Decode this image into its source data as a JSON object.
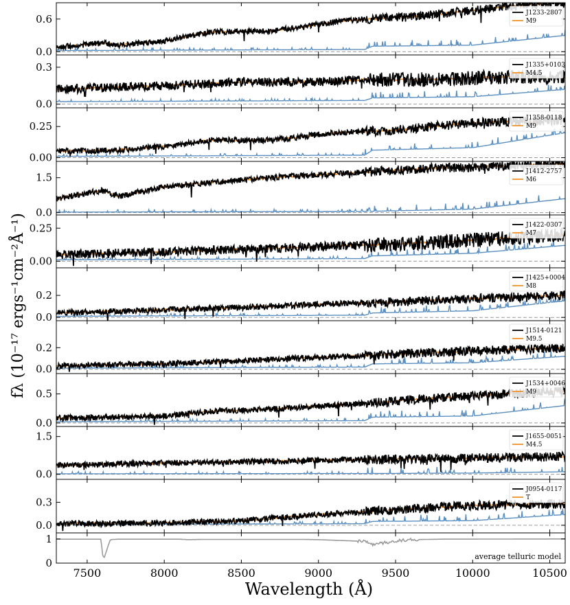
{
  "chart_data": {
    "type": "line",
    "title": "",
    "xlabel": "Wavelength (Å)",
    "ylabel": "fλ (10⁻¹⁷ ergs⁻¹cm⁻²Å⁻¹)",
    "xlim": [
      7300,
      10600
    ],
    "xticks": [
      7500,
      8000,
      8500,
      9000,
      9500,
      10000,
      10500
    ],
    "xtick_labels": [
      "7500",
      "8000",
      "8500",
      "9000",
      "9500",
      "10000",
      "10500"
    ],
    "grid": false,
    "legend_position": "top-right",
    "series_colors": {
      "observed": "#000000",
      "template": "#f0922b",
      "noise": "#5b8fc0",
      "telluric": "#9a9a9a"
    },
    "panels": [
      {
        "legend": [
          "J1233-2807",
          "M9"
        ],
        "ylim": [
          -0.06,
          0.9
        ],
        "yticks": [
          0.0,
          0.6
        ],
        "ytick_labels": [
          "0.0",
          "0.6"
        ],
        "continuum": [
          [
            7300,
            0.08
          ],
          [
            7600,
            0.16
          ],
          [
            7700,
            0.12
          ],
          [
            8000,
            0.2
          ],
          [
            8300,
            0.36
          ],
          [
            8700,
            0.38
          ],
          [
            9200,
            0.58
          ],
          [
            9600,
            0.64
          ],
          [
            10000,
            0.76
          ],
          [
            10300,
            0.85
          ],
          [
            10600,
            0.9
          ]
        ],
        "noise": [
          [
            7300,
            0.02
          ],
          [
            9300,
            0.04
          ],
          [
            9350,
            0.1
          ],
          [
            10000,
            0.12
          ],
          [
            10600,
            0.3
          ]
        ]
      },
      {
        "legend": [
          "J1335+0103",
          "M4.5"
        ],
        "ylim": [
          -0.03,
          0.4
        ],
        "yticks": [
          0.0,
          0.3
        ],
        "ytick_labels": [
          "0.0",
          "0.3"
        ],
        "continuum": [
          [
            7300,
            0.12
          ],
          [
            8000,
            0.15
          ],
          [
            8500,
            0.18
          ],
          [
            9000,
            0.18
          ],
          [
            9300,
            0.2
          ],
          [
            9700,
            0.2
          ],
          [
            10200,
            0.22
          ],
          [
            10600,
            0.22
          ]
        ],
        "noise": [
          [
            7300,
            0.02
          ],
          [
            9300,
            0.03
          ],
          [
            9350,
            0.05
          ],
          [
            10000,
            0.06
          ],
          [
            10600,
            0.12
          ]
        ]
      },
      {
        "legend": [
          "J1358-0118",
          "M9"
        ],
        "ylim": [
          -0.03,
          0.4
        ],
        "yticks": [
          0.0,
          0.25
        ],
        "ytick_labels": [
          "0.00",
          "0.25"
        ],
        "continuum": [
          [
            7300,
            0.05
          ],
          [
            7700,
            0.06
          ],
          [
            8000,
            0.09
          ],
          [
            8300,
            0.14
          ],
          [
            8700,
            0.14
          ],
          [
            9100,
            0.2
          ],
          [
            9500,
            0.22
          ],
          [
            10000,
            0.28
          ],
          [
            10600,
            0.3
          ]
        ],
        "noise": [
          [
            7300,
            0.01
          ],
          [
            9300,
            0.02
          ],
          [
            9350,
            0.06
          ],
          [
            10000,
            0.08
          ],
          [
            10600,
            0.2
          ]
        ]
      },
      {
        "legend": [
          "J1412-2757",
          "M6"
        ],
        "ylim": [
          -0.1,
          2.2
        ],
        "yticks": [
          0.0,
          1.5
        ],
        "ytick_labels": [
          "0.0",
          "1.5"
        ],
        "continuum": [
          [
            7300,
            0.6
          ],
          [
            7600,
            0.95
          ],
          [
            7700,
            0.7
          ],
          [
            8000,
            1.1
          ],
          [
            8300,
            1.3
          ],
          [
            8700,
            1.5
          ],
          [
            9200,
            1.7
          ],
          [
            9700,
            1.9
          ],
          [
            10200,
            2.0
          ],
          [
            10600,
            2.1
          ]
        ],
        "noise": [
          [
            7300,
            0.02
          ],
          [
            9300,
            0.05
          ],
          [
            10000,
            0.15
          ],
          [
            10600,
            0.6
          ]
        ]
      },
      {
        "legend": [
          "J1422-0307",
          "M7"
        ],
        "ylim": [
          -0.05,
          0.35
        ],
        "yticks": [
          0.0,
          0.25
        ],
        "ytick_labels": [
          "0.00",
          "0.25"
        ],
        "continuum": [
          [
            7300,
            0.05
          ],
          [
            8000,
            0.07
          ],
          [
            8500,
            0.09
          ],
          [
            9000,
            0.11
          ],
          [
            9500,
            0.13
          ],
          [
            10000,
            0.16
          ],
          [
            10600,
            0.2
          ]
        ],
        "noise": [
          [
            7300,
            0.01
          ],
          [
            9300,
            0.02
          ],
          [
            9350,
            0.04
          ],
          [
            10000,
            0.06
          ],
          [
            10600,
            0.12
          ]
        ]
      },
      {
        "legend": [
          "J1425+0004",
          "M8"
        ],
        "ylim": [
          -0.03,
          0.45
        ],
        "yticks": [
          0.0,
          0.2
        ],
        "ytick_labels": [
          "0.0",
          "0.2"
        ],
        "continuum": [
          [
            7300,
            0.04
          ],
          [
            8000,
            0.07
          ],
          [
            8500,
            0.09
          ],
          [
            9000,
            0.12
          ],
          [
            9500,
            0.14
          ],
          [
            10000,
            0.17
          ],
          [
            10600,
            0.2
          ]
        ],
        "noise": [
          [
            7300,
            0.01
          ],
          [
            9300,
            0.02
          ],
          [
            9350,
            0.04
          ],
          [
            10000,
            0.06
          ],
          [
            10600,
            0.15
          ]
        ]
      },
      {
        "legend": [
          "J1514-0121",
          "M9.5"
        ],
        "ylim": [
          -0.04,
          0.45
        ],
        "yticks": [
          0.0,
          0.2
        ],
        "ytick_labels": [
          "0.0",
          "0.2"
        ],
        "continuum": [
          [
            7300,
            0.03
          ],
          [
            8000,
            0.05
          ],
          [
            8500,
            0.08
          ],
          [
            9000,
            0.11
          ],
          [
            9500,
            0.14
          ],
          [
            10000,
            0.17
          ],
          [
            10600,
            0.2
          ]
        ],
        "noise": [
          [
            7300,
            0.01
          ],
          [
            9300,
            0.02
          ],
          [
            9350,
            0.05
          ],
          [
            10000,
            0.06
          ],
          [
            10600,
            0.12
          ]
        ]
      },
      {
        "legend": [
          "J1534+0046",
          "M9"
        ],
        "ylim": [
          -0.06,
          0.85
        ],
        "yticks": [
          0.0,
          0.5
        ],
        "ytick_labels": [
          "0.0",
          "0.5"
        ],
        "continuum": [
          [
            7300,
            0.08
          ],
          [
            8000,
            0.12
          ],
          [
            8300,
            0.2
          ],
          [
            8700,
            0.24
          ],
          [
            9200,
            0.32
          ],
          [
            9700,
            0.42
          ],
          [
            10200,
            0.5
          ],
          [
            10600,
            0.55
          ]
        ],
        "noise": [
          [
            7300,
            0.02
          ],
          [
            9300,
            0.04
          ],
          [
            9350,
            0.1
          ],
          [
            10000,
            0.12
          ],
          [
            10600,
            0.3
          ]
        ]
      },
      {
        "legend": [
          "J1655-0051",
          "M4.5"
        ],
        "ylim": [
          -0.2,
          1.9
        ],
        "yticks": [
          0.0,
          1.5
        ],
        "ytick_labels": [
          "0.0",
          "1.5"
        ],
        "continuum": [
          [
            7300,
            0.35
          ],
          [
            8000,
            0.45
          ],
          [
            8500,
            0.5
          ],
          [
            9000,
            0.55
          ],
          [
            9500,
            0.6
          ],
          [
            10000,
            0.65
          ],
          [
            10600,
            0.7
          ]
        ],
        "noise": [
          [
            7300,
            0.02
          ],
          [
            9300,
            0.03
          ],
          [
            10000,
            0.05
          ],
          [
            10600,
            0.1
          ]
        ]
      },
      {
        "legend": [
          "J0954-0117",
          "T"
        ],
        "ylim": [
          -0.1,
          0.6
        ],
        "yticks": [
          0.0,
          0.3
        ],
        "ytick_labels": [
          "0.0",
          "0.3"
        ],
        "continuum": [
          [
            7300,
            0.02
          ],
          [
            8000,
            0.03
          ],
          [
            8500,
            0.06
          ],
          [
            9000,
            0.14
          ],
          [
            9500,
            0.2
          ],
          [
            10000,
            0.26
          ],
          [
            10600,
            0.28
          ]
        ],
        "noise": [
          [
            7300,
            0.01
          ],
          [
            9300,
            0.02
          ],
          [
            9350,
            0.05
          ],
          [
            10000,
            0.06
          ],
          [
            10600,
            0.14
          ]
        ]
      },
      {
        "legend": [
          "average telluric model"
        ],
        "ylim": [
          0,
          1.25
        ],
        "yticks": [
          0,
          1
        ],
        "ytick_labels": [
          "0",
          "1"
        ],
        "telluric": [
          [
            7300,
            0.99
          ],
          [
            7590,
            0.99
          ],
          [
            7600,
            0.35
          ],
          [
            7610,
            0.2
          ],
          [
            7630,
            0.6
          ],
          [
            7650,
            0.97
          ],
          [
            7700,
            0.99
          ],
          [
            8100,
            0.99
          ],
          [
            8150,
            0.97
          ],
          [
            8250,
            0.98
          ],
          [
            8900,
            0.98
          ],
          [
            9000,
            0.97
          ],
          [
            9300,
            0.9
          ],
          [
            9350,
            0.78
          ],
          [
            9400,
            0.82
          ],
          [
            9450,
            0.86
          ],
          [
            9500,
            0.92
          ],
          [
            9600,
            0.97
          ],
          [
            9800,
            0.99
          ],
          [
            10600,
            1.0
          ]
        ]
      }
    ]
  }
}
